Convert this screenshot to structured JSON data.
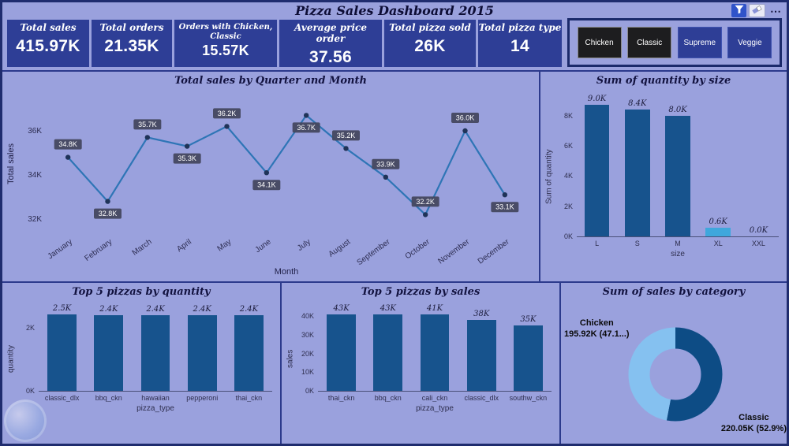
{
  "header": {
    "title": "Pizza Sales Dashboard 2015",
    "more_label": "⋯"
  },
  "icons": {
    "filter": "funnel-filter-icon",
    "clear": "eraser-icon",
    "more": "more-options-icon",
    "watermark": "circular-logo-watermark"
  },
  "colors": {
    "page_bg": "#2c3a8c",
    "panel_bg": "#9aa1dd",
    "card_bg": "#2e3e96",
    "accent_blue": "#3053c9",
    "bar_blue": "#17538d",
    "bar_highlight": "#3fa7dc",
    "donut_dark": "#0d4c85",
    "donut_light": "#85c1f0"
  },
  "kpis": [
    {
      "label": "Total sales",
      "value": "415.97K"
    },
    {
      "label": "Total orders",
      "value": "21.35K"
    },
    {
      "label": "Orders with Chicken, Classic",
      "value": "15.57K"
    },
    {
      "label": "Average price order",
      "value": "37.56"
    },
    {
      "label": "Total pizza sold",
      "value": "26K"
    },
    {
      "label": "Total pizza type",
      "value": "14"
    }
  ],
  "slicer": {
    "options": [
      {
        "label": "Chicken",
        "selected": true
      },
      {
        "label": "Classic",
        "selected": true
      },
      {
        "label": "Supreme",
        "selected": false
      },
      {
        "label": "Veggie",
        "selected": false
      }
    ]
  },
  "chart_data": [
    {
      "type": "line",
      "title": "Total sales by Quarter and Month",
      "xlabel": "Month",
      "ylabel": "Total sales",
      "categories": [
        "January",
        "February",
        "March",
        "April",
        "May",
        "June",
        "July",
        "August",
        "September",
        "October",
        "November",
        "December"
      ],
      "values": [
        34800,
        32800,
        35700,
        35300,
        36200,
        34100,
        36700,
        35200,
        33900,
        32200,
        36000,
        33100
      ],
      "labels": [
        "34.8K",
        "32.8K",
        "35.7K",
        "35.3K",
        "36.2K",
        "34.1K",
        "36.7K",
        "35.2K",
        "33.9K",
        "32.2K",
        "36.0K",
        "33.1K"
      ],
      "label_side": [
        "above",
        "below",
        "above",
        "below",
        "above",
        "below",
        "below",
        "above",
        "above",
        "above",
        "above",
        "below"
      ],
      "yticks": [
        {
          "v": 32000,
          "t": "32K"
        },
        {
          "v": 34000,
          "t": "34K"
        },
        {
          "v": 36000,
          "t": "36K"
        }
      ],
      "ylim": [
        31500,
        37500
      ],
      "grid": false,
      "line_color": "#2e75b6",
      "marker_color": "#1f3358",
      "pill_color": "#45485f"
    },
    {
      "type": "bar",
      "title": "Sum of quantity by size",
      "xlabel": "size",
      "ylabel": "Sum of quantity",
      "categories": [
        "L",
        "S",
        "M",
        "XL",
        "XXL"
      ],
      "values": [
        9000,
        8400,
        8000,
        600,
        0
      ],
      "labels": [
        "9.0K",
        "8.4K",
        "8.0K",
        "0.6K",
        "0.0K"
      ],
      "yticks": [
        {
          "v": 0,
          "t": "0K"
        },
        {
          "v": 2000,
          "t": "2K"
        },
        {
          "v": 4000,
          "t": "4K"
        },
        {
          "v": 6000,
          "t": "6K"
        },
        {
          "v": 8000,
          "t": "8K"
        }
      ],
      "ymax": 9400,
      "grid": false,
      "color": "#17538d",
      "bar_colors": {
        "3": "#3fa7dc"
      }
    },
    {
      "type": "bar",
      "title": "Top 5 pizzas by quantity",
      "xlabel": "pizza_type",
      "ylabel": "quantity",
      "categories": [
        "classic_dlx",
        "bbq_ckn",
        "hawaiian",
        "pepperoni",
        "thai_ckn"
      ],
      "values": [
        2500,
        2400,
        2400,
        2400,
        2400
      ],
      "labels": [
        "2.5K",
        "2.4K",
        "2.4K",
        "2.4K",
        "2.4K"
      ],
      "yticks": [
        {
          "v": 0,
          "t": "0K"
        },
        {
          "v": 2000,
          "t": "2K"
        }
      ],
      "ymax": 2750,
      "grid": false,
      "color": "#17538d"
    },
    {
      "type": "bar",
      "title": "Top 5 pizzas by sales",
      "xlabel": "pizza_type",
      "ylabel": "sales",
      "categories": [
        "thai_ckn",
        "bbq_ckn",
        "cali_ckn",
        "classic_dlx",
        "southw_ckn"
      ],
      "values": [
        43000,
        43000,
        41000,
        38000,
        35000
      ],
      "labels": [
        "43K",
        "43K",
        "41K",
        "38K",
        "35K"
      ],
      "yticks": [
        {
          "v": 0,
          "t": "0K"
        },
        {
          "v": 10000,
          "t": "10K"
        },
        {
          "v": 20000,
          "t": "20K"
        },
        {
          "v": 30000,
          "t": "30K"
        },
        {
          "v": 40000,
          "t": "40K"
        }
      ],
      "ymax": 46500,
      "grid": false,
      "color": "#17538d"
    },
    {
      "type": "pie",
      "donut": true,
      "title": "Sum of sales by category",
      "slices": [
        {
          "label": "Chicken",
          "value": 195.92,
          "display": "195.92K (47.1...)",
          "color": "#85c1f0"
        },
        {
          "label": "Classic",
          "value": 220.05,
          "display": "220.05K (52.9%)",
          "color": "#0d4c85"
        }
      ]
    }
  ]
}
